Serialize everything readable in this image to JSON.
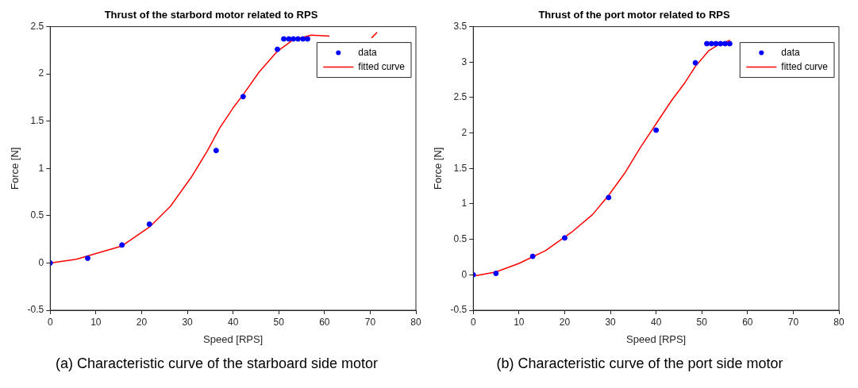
{
  "chart_data": [
    {
      "type": "scatter",
      "title": "Thrust of the starbord motor related to RPS",
      "xlabel": "Speed [RPS]",
      "ylabel": "Force [N]",
      "annotations": [
        "(a) Characteristic curve of the starboard side motor"
      ],
      "xlim": [
        0,
        80
      ],
      "ylim": [
        -0.5,
        2.5
      ],
      "xticks": [
        0,
        10,
        20,
        30,
        40,
        50,
        60,
        70,
        80
      ],
      "yticks": [
        -0.5,
        0,
        0.5,
        1,
        1.5,
        2,
        2.5
      ],
      "legend": "top right",
      "grid": false,
      "series": [
        {
          "name": "data",
          "type": "scatter",
          "marker": "circle",
          "color": "#0000ff",
          "x": [
            0,
            8.2,
            15.7,
            21.7,
            36.3,
            42.2,
            49.7,
            51.1,
            52.2,
            53.2,
            54.2,
            55.3,
            56.3
          ],
          "values": [
            0,
            0.05,
            0.19,
            0.41,
            1.19,
            1.76,
            2.26,
            2.37,
            2.37,
            2.37,
            2.37,
            2.37,
            2.37
          ]
        },
        {
          "name": "fitted curve",
          "type": "line",
          "marker": "none",
          "color": "#ff0000",
          "x": [
            0,
            5.7,
            15.7,
            21.7,
            26.3,
            30.9,
            34.3,
            37.1,
            40,
            42.2,
            45.7,
            49.7,
            53.1,
            57.1,
            61.1,
            61.7,
            70.3,
            71.5
          ],
          "values": [
            0,
            0.04,
            0.18,
            0.38,
            0.6,
            0.91,
            1.18,
            1.43,
            1.64,
            1.78,
            2.02,
            2.24,
            2.36,
            2.41,
            2.4,
            null,
            2.38,
            2.44
          ]
        }
      ]
    },
    {
      "type": "scatter",
      "title": "Thrust of the port motor related to RPS",
      "xlabel": "Speed [RPS]",
      "ylabel": "Force [N]",
      "annotations": [
        "(b) Characteristic curve of the port side motor"
      ],
      "xlim": [
        0,
        80
      ],
      "ylim": [
        -0.5,
        3.5
      ],
      "xticks": [
        0,
        10,
        20,
        30,
        40,
        50,
        60,
        70,
        80
      ],
      "yticks": [
        -0.5,
        0,
        0.5,
        1,
        1.5,
        2,
        2.5,
        3,
        3.5
      ],
      "legend": "top right",
      "grid": false,
      "series": [
        {
          "name": "data",
          "type": "scatter",
          "marker": "circle",
          "color": "#0000ff",
          "x": [
            0,
            4.96,
            13,
            20,
            29.6,
            40,
            48.6,
            51.1,
            52.1,
            53.1,
            54.1,
            55.1,
            56.1
          ],
          "values": [
            0,
            0.02,
            0.26,
            0.52,
            1.09,
            2.04,
            2.99,
            3.26,
            3.26,
            3.26,
            3.26,
            3.26,
            3.26
          ]
        },
        {
          "name": "fitted curve",
          "type": "line",
          "marker": "none",
          "color": "#ff0000",
          "x": [
            0,
            0.75,
            4.96,
            10,
            15.8,
            21.5,
            26.1,
            29.6,
            33.1,
            36.5,
            40,
            43.4,
            46.3,
            48.6,
            51.5,
            53.8,
            56.2
          ],
          "values": [
            0,
            -0.01,
            0.04,
            0.16,
            0.34,
            0.6,
            0.85,
            1.12,
            1.43,
            1.79,
            2.13,
            2.46,
            2.71,
            2.94,
            3.16,
            3.25,
            3.31
          ]
        }
      ]
    }
  ]
}
